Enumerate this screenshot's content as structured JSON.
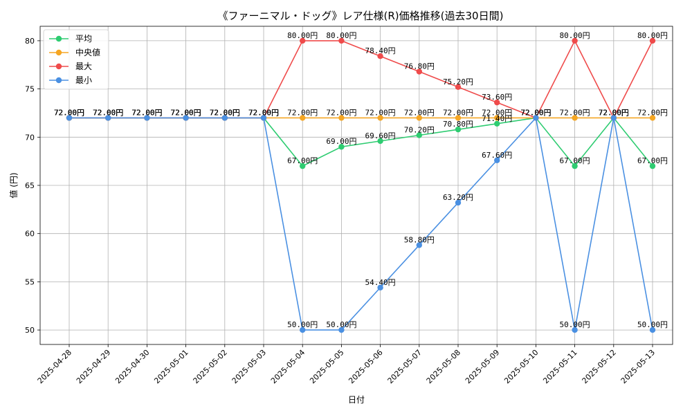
{
  "chart_data": {
    "type": "line",
    "title": "《ファーニマル・ドッグ》レア仕様(R)価格推移(過去30日間)",
    "xlabel": "日付",
    "ylabel": "値 (円)",
    "ylim": [
      48.5,
      81.5
    ],
    "yticks": [
      50,
      55,
      60,
      65,
      70,
      75,
      80
    ],
    "grid": true,
    "legend_position": "top-left",
    "x": [
      "2025-04-28",
      "2025-04-29",
      "2025-04-30",
      "2025-05-01",
      "2025-05-02",
      "2025-05-03",
      "2025-05-04",
      "2025-05-05",
      "2025-05-06",
      "2025-05-07",
      "2025-05-08",
      "2025-05-09",
      "2025-05-10",
      "2025-05-11",
      "2025-05-12",
      "2025-05-13"
    ],
    "label_suffix": "円",
    "series": [
      {
        "name": "平均",
        "color": "#2ecc71",
        "values": [
          72,
          72,
          72,
          72,
          72,
          72,
          67,
          69,
          69.6,
          70.2,
          70.8,
          71.4,
          72,
          67,
          72,
          67
        ]
      },
      {
        "name": "中央値",
        "color": "#f5a623",
        "values": [
          72,
          72,
          72,
          72,
          72,
          72,
          72,
          72,
          72,
          72,
          72,
          72,
          72,
          72,
          72,
          72
        ]
      },
      {
        "name": "最大",
        "color": "#ef4b4b",
        "values": [
          72,
          72,
          72,
          72,
          72,
          72,
          80,
          80,
          78.4,
          76.8,
          75.2,
          73.6,
          72,
          80,
          72,
          80
        ]
      },
      {
        "name": "最小",
        "color": "#4a90e2",
        "values": [
          72,
          72,
          72,
          72,
          72,
          72,
          50,
          50,
          54.4,
          58.8,
          63.2,
          67.6,
          72,
          50,
          72,
          50
        ]
      }
    ]
  }
}
